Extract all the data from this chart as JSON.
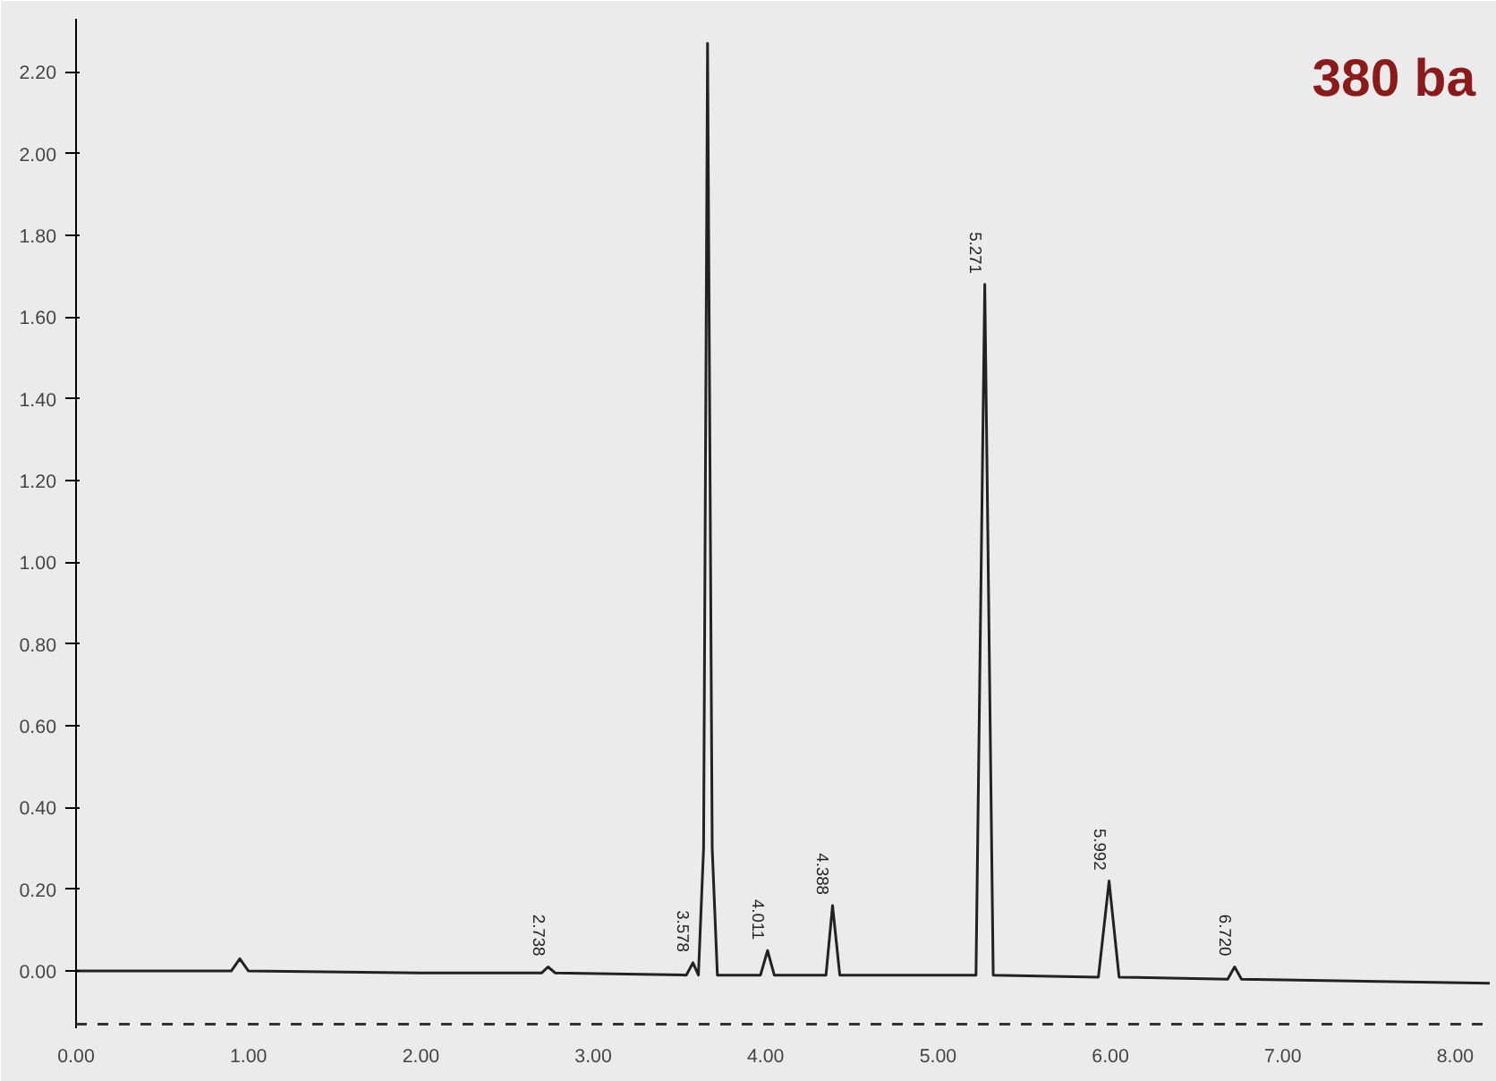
{
  "chart_data": {
    "type": "line",
    "x": [
      0,
      0.9,
      0.95,
      1.0,
      2.0,
      2.7,
      2.738,
      2.78,
      3.54,
      3.578,
      3.61,
      3.64,
      3.663,
      3.69,
      3.72,
      3.97,
      4.011,
      4.05,
      4.35,
      4.388,
      4.43,
      5.22,
      5.271,
      5.32,
      5.93,
      5.992,
      6.05,
      6.68,
      6.72,
      6.76,
      8.2
    ],
    "series": [
      {
        "color": "#222222",
        "values": [
          0.0,
          0.0,
          0.03,
          0.0,
          -0.005,
          -0.005,
          0.01,
          -0.005,
          -0.01,
          0.02,
          -0.01,
          0.3,
          2.27,
          0.3,
          -0.01,
          -0.01,
          0.05,
          -0.01,
          -0.01,
          0.16,
          -0.01,
          -0.01,
          1.68,
          -0.01,
          -0.015,
          0.22,
          -0.015,
          -0.02,
          0.01,
          -0.02,
          -0.03
        ]
      }
    ],
    "xlim": [
      0,
      8.2
    ],
    "ylim": [
      -0.14,
      2.33
    ],
    "xticks": [
      {
        "value": 0,
        "label": "0.00"
      },
      {
        "value": 1,
        "label": "1.00"
      },
      {
        "value": 2,
        "label": "2.00"
      },
      {
        "value": 3,
        "label": "3.00"
      },
      {
        "value": 4,
        "label": "4.00"
      },
      {
        "value": 5,
        "label": "5.00"
      },
      {
        "value": 6,
        "label": "6.00"
      },
      {
        "value": 7,
        "label": "7.00"
      },
      {
        "value": 8,
        "label": "8.00"
      }
    ],
    "yticks": [
      {
        "value": 0,
        "label": "0.00"
      },
      {
        "value": 0.2,
        "label": "0.20"
      },
      {
        "value": 0.4,
        "label": "0.40"
      },
      {
        "value": 0.6,
        "label": "0.60"
      },
      {
        "value": 0.8,
        "label": "0.80"
      },
      {
        "value": 1.0,
        "label": "1.00"
      },
      {
        "value": 1.2,
        "label": "1.20"
      },
      {
        "value": 1.4,
        "label": "1.40"
      },
      {
        "value": 1.6,
        "label": "1.60"
      },
      {
        "value": 1.8,
        "label": "1.80"
      },
      {
        "value": 2.0,
        "label": "2.00"
      },
      {
        "value": 2.2,
        "label": "2.20"
      }
    ],
    "ref_lines": [
      {
        "axis": "y",
        "value": -0.13,
        "line_style": "dashed",
        "color": "#333333"
      }
    ],
    "annotations": [
      {
        "text": "2.738",
        "x": 2.738,
        "y": 0.01
      },
      {
        "text": "3.578",
        "x": 3.578,
        "y": 0.02
      },
      {
        "text": "4.011",
        "x": 4.011,
        "y": 0.05
      },
      {
        "text": "4.388",
        "x": 4.388,
        "y": 0.16
      },
      {
        "text": "5.271",
        "x": 5.271,
        "y": 1.68
      },
      {
        "text": "5.992",
        "x": 5.992,
        "y": 0.22
      },
      {
        "text": "6.720",
        "x": 6.72,
        "y": 0.01
      },
      "380 ba"
    ],
    "grid": false,
    "line_style": "solid",
    "marker": "none"
  }
}
